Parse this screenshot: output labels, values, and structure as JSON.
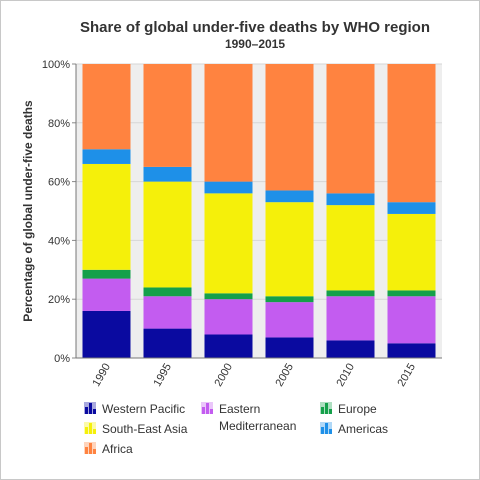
{
  "chart_data": {
    "type": "bar",
    "stacked": true,
    "title": "Share of global under-five deaths by WHO region",
    "subtitle": "1990–2015",
    "xlabel": "",
    "ylabel": "Percentage of global under-five deaths",
    "ylim": [
      0,
      100
    ],
    "yticks": [
      "0%",
      "20%",
      "40%",
      "60%",
      "80%",
      "100%"
    ],
    "grid": true,
    "legend_position": "bottom",
    "categories": [
      "1990",
      "1995",
      "2000",
      "2005",
      "2010",
      "2015"
    ],
    "series": [
      {
        "name": "Western Pacific",
        "color": "#0a0aa0",
        "values": [
          16,
          10,
          8,
          7,
          6,
          5
        ]
      },
      {
        "name": "Eastern Mediterranean",
        "color": "#c35cf0",
        "values": [
          11,
          11,
          12,
          12,
          15,
          16
        ]
      },
      {
        "name": "Europe",
        "color": "#14a04a",
        "values": [
          3,
          3,
          2,
          2,
          2,
          2
        ]
      },
      {
        "name": "South-East Asia",
        "color": "#f5f00a",
        "values": [
          36,
          36,
          34,
          32,
          29,
          26
        ]
      },
      {
        "name": "Americas",
        "color": "#1e90e8",
        "values": [
          5,
          5,
          4,
          4,
          4,
          4
        ]
      },
      {
        "name": "Africa",
        "color": "#ff8340",
        "values": [
          29,
          35,
          40,
          43,
          44,
          47
        ]
      }
    ],
    "legend": {
      "Western Pacific": "Western Pacific",
      "Eastern Mediterranean": [
        "Eastern",
        "Mediterranean"
      ],
      "Europe": "Europe",
      "South-East Asia": "South-East Asia",
      "Americas": "Americas",
      "Africa": "Africa"
    }
  }
}
